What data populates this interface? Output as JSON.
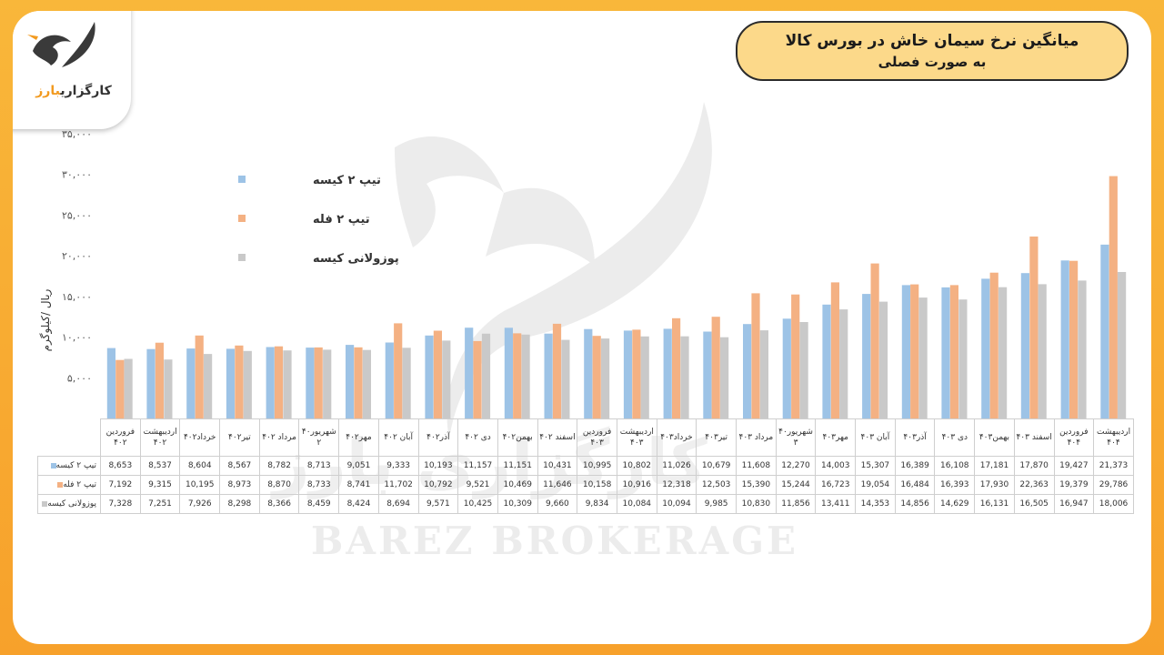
{
  "header": {
    "title_line1": "میانگین نرخ سیمان خاش در بورس کالا",
    "title_line2": "به صورت فصلی"
  },
  "logo": {
    "text_main": "کارگزاری",
    "text_accent": "بارز"
  },
  "watermark": {
    "text": "BAREZ BROKERAGE",
    "text_fa": "کارگزاری بارز"
  },
  "chart_data": {
    "type": "bar",
    "ylabel": "ریال /کیلوگرم",
    "ylim": [
      0,
      35000
    ],
    "yticks": [
      5000,
      10000,
      15000,
      20000,
      25000,
      30000,
      35000
    ],
    "ytick_labels": [
      "۵,۰۰۰",
      "۱۰,۰۰۰",
      "۱۵,۰۰۰",
      "۲۰,۰۰۰",
      "۲۵,۰۰۰",
      "۳۰,۰۰۰",
      "۳۵,۰۰۰"
    ],
    "grid": false,
    "legend_position": "top-left",
    "categories": [
      "فروردین ۴۰۲",
      "اردیبهشت ۴۰۲",
      "خرداد۴۰۲",
      "تیر۴۰۲",
      "مرداد ۴۰۲",
      "شهریور۴۰ ۲",
      "مهر۴۰۲",
      "آبان ۴۰۲",
      "آذر۴۰۲",
      "دی ۴۰۲",
      "بهمن۴۰۲",
      "اسفند ۴۰۲",
      "فروردین ۴۰۳",
      "اردیبهشت ۴۰۳",
      "خرداد۴۰۳",
      "تیر۴۰۳",
      "مرداد ۴۰۳",
      "شهریور۴۰ ۳",
      "مهر۴۰۳",
      "آبان ۴۰۳",
      "آذر۴۰۳",
      "دی ۴۰۳",
      "بهمن۴۰۳",
      "اسفند ۴۰۳",
      "فروردین ۴۰۴",
      "اردیبهشت ۴۰۴"
    ],
    "series": [
      {
        "name": "تیپ ۲ کیسه",
        "color": "#9dc3e6",
        "values": [
          8653,
          8537,
          8604,
          8567,
          8782,
          8713,
          9051,
          9333,
          10193,
          11157,
          11151,
          10431,
          10995,
          10802,
          11026,
          10679,
          11608,
          12270,
          14003,
          15307,
          16389,
          16108,
          17181,
          17870,
          19427,
          21373
        ]
      },
      {
        "name": "تیپ ۲ فله",
        "color": "#f4b183",
        "values": [
          7192,
          9315,
          10195,
          8973,
          8870,
          8733,
          8741,
          11702,
          10792,
          9521,
          10469,
          11646,
          10158,
          10916,
          12318,
          12503,
          15390,
          15244,
          16723,
          19054,
          16484,
          16393,
          17930,
          22363,
          19379,
          29786
        ]
      },
      {
        "name": "پوزولانی کیسه",
        "color": "#c9c9c9",
        "values": [
          7328,
          7251,
          7926,
          8298,
          8366,
          8459,
          8424,
          8694,
          9571,
          10425,
          10309,
          9660,
          9834,
          10084,
          10094,
          9985,
          10830,
          11856,
          13411,
          14353,
          14856,
          14629,
          16131,
          16505,
          16947,
          18006
        ]
      }
    ]
  }
}
